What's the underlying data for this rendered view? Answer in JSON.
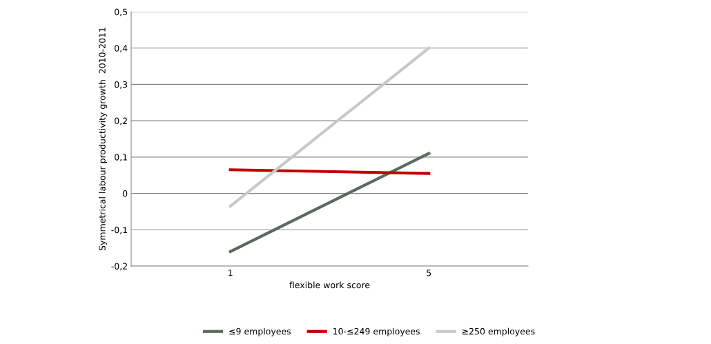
{
  "chart_data": {
    "type": "line",
    "xlabel": "flexible work score",
    "ylabel": "Symmetrical labour productivity growth  2010-2011",
    "categories": [
      "1",
      "5"
    ],
    "series": [
      {
        "name": "≤9 employees",
        "color": "#5a6b5a",
        "values": [
          -0.16,
          0.11
        ]
      },
      {
        "name": "10-≤249 employees",
        "color": "#c00000",
        "values": [
          0.065,
          0.055
        ]
      },
      {
        "name": "≥250 employees",
        "color": "#c8c8c8",
        "values": [
          -0.035,
          0.4
        ]
      }
    ],
    "ylim": [
      -0.2,
      0.5
    ],
    "yticks": [
      {
        "value": -0.2,
        "label": "-0,2"
      },
      {
        "value": -0.1,
        "label": "-0,1"
      },
      0,
      {
        "value": 0.1,
        "label": "0,1"
      },
      {
        "value": 0.2,
        "label": "0,2"
      },
      {
        "value": 0.3,
        "label": "0,3"
      },
      {
        "value": 0.4,
        "label": "0,4"
      },
      {
        "value": 0.5,
        "label": "0,5"
      }
    ],
    "grid": "y",
    "legend": "bottom",
    "marker": "none",
    "line_style": "solid"
  }
}
